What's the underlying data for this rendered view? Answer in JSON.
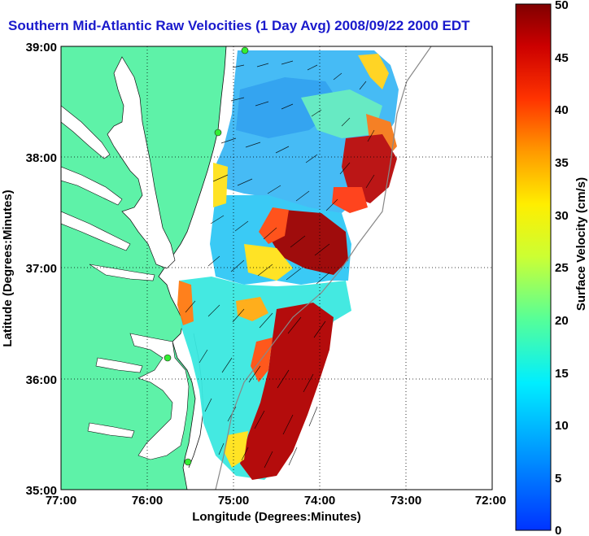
{
  "title": "Southern Mid-Atlantic Raw Velocities (1 Day Avg) 2008/09/22 2000 EDT",
  "map": {
    "x_label": "Longitude (Degrees:Minutes)",
    "y_label": "Latitude (Degrees:Minutes)",
    "x_ticks": [
      "77:00",
      "76:00",
      "75:00",
      "74:00",
      "73:00",
      "72:00"
    ],
    "y_ticks": [
      "39:00",
      "38:00",
      "37:00",
      "36:00",
      "35:00"
    ],
    "lon_range": [
      -77,
      -72
    ],
    "lat_range": [
      35,
      39
    ],
    "grid": "dotted",
    "colors": {
      "land": "#5ef2a8",
      "water": "#ffffff",
      "coast": "#111111",
      "station": "#33ee33"
    }
  },
  "colorbar": {
    "label": "Surface Velocity (cm/s)",
    "min": 0,
    "max": 50,
    "ticks": [
      "0",
      "5",
      "10",
      "15",
      "20",
      "25",
      "30",
      "35",
      "40",
      "45",
      "50"
    ],
    "colormap": "jet"
  }
}
